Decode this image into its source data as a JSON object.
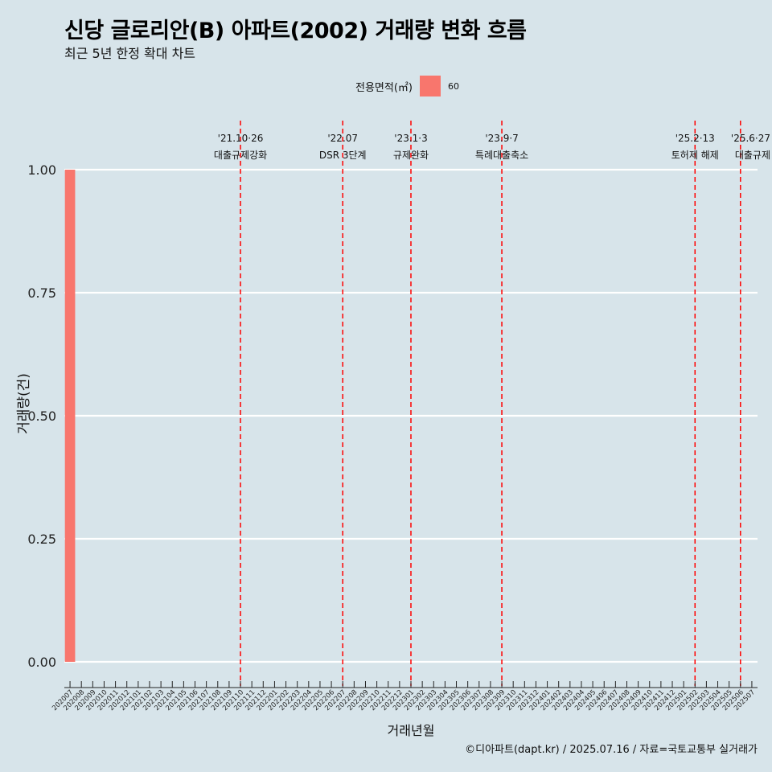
{
  "title": "신당 글로리안(B) 아파트(2002) 거래량 변화 흐름",
  "subtitle": "최근 5년 한정 확대 차트",
  "caption": "©디아파트(dapt.kr) / 2025.07.16 / 자료=국토교통부 실거래가",
  "legend": {
    "title": "전용면적(㎡)",
    "items": [
      {
        "label": "60",
        "color": "#f8766d"
      }
    ]
  },
  "chart_data": {
    "type": "bar",
    "title": "신당 글로리안(B) 아파트(2002) 거래량 변화 흐름",
    "subtitle": "최근 5년 한정 확대 차트",
    "xlabel": "거래년월",
    "ylabel": "거래량(건)",
    "ylim": [
      0,
      1
    ],
    "yticks": [
      "0.00",
      "0.25",
      "0.50",
      "0.75",
      "1.00"
    ],
    "grid": true,
    "legend_position": "top",
    "categories": [
      "202007",
      "202008",
      "202009",
      "202010",
      "202011",
      "202012",
      "202101",
      "202102",
      "202103",
      "202104",
      "202105",
      "202106",
      "202107",
      "202108",
      "202109",
      "202110",
      "202111",
      "202112",
      "202201",
      "202202",
      "202203",
      "202204",
      "202205",
      "202206",
      "202207",
      "202208",
      "202209",
      "202210",
      "202211",
      "202212",
      "202301",
      "202302",
      "202303",
      "202304",
      "202305",
      "202306",
      "202307",
      "202308",
      "202309",
      "202310",
      "202311",
      "202312",
      "202401",
      "202402",
      "202403",
      "202404",
      "202405",
      "202406",
      "202407",
      "202408",
      "202409",
      "202410",
      "202411",
      "202412",
      "202501",
      "202502",
      "202503",
      "202504",
      "202505",
      "202506",
      "202507"
    ],
    "series": [
      {
        "name": "60",
        "color": "#f8766d",
        "values": [
          1,
          0,
          0,
          0,
          0,
          0,
          0,
          0,
          0,
          0,
          0,
          0,
          0,
          0,
          0,
          0,
          0,
          0,
          0,
          0,
          0,
          0,
          0,
          0,
          0,
          0,
          0,
          0,
          0,
          0,
          0,
          0,
          0,
          0,
          0,
          0,
          0,
          0,
          0,
          0,
          0,
          0,
          0,
          0,
          0,
          0,
          0,
          0,
          0,
          0,
          0,
          0,
          0,
          0,
          0,
          0,
          0,
          0,
          0,
          0,
          0
        ]
      }
    ],
    "annotations": [
      {
        "x": "202110",
        "date": "'21.10·26",
        "label": "대출규제강화"
      },
      {
        "x": "202207",
        "date": "'22.07",
        "label": "DSR 3단계"
      },
      {
        "x": "202301",
        "date": "'23.1·3",
        "label": "규제완화"
      },
      {
        "x": "202309",
        "date": "'23.9·7",
        "label": "특례대출축소"
      },
      {
        "x": "202502",
        "date": "'25.2·13",
        "label": "토허제 해제"
      },
      {
        "x": "202506",
        "date": "'25.6·27",
        "label": "대출규제"
      }
    ]
  }
}
